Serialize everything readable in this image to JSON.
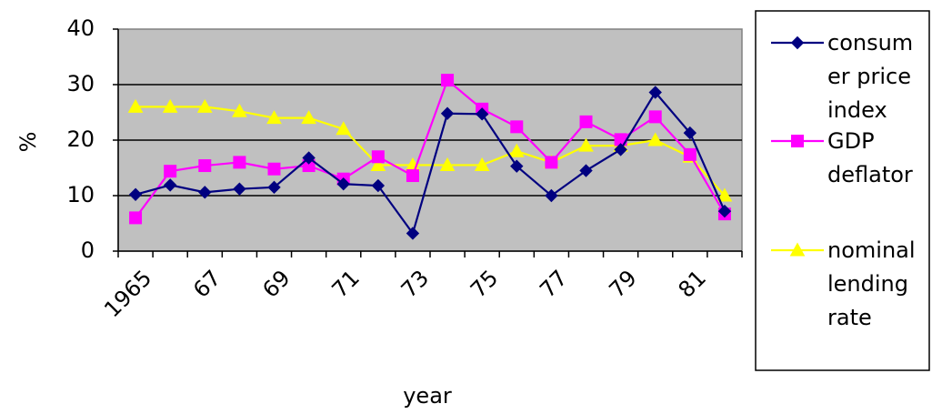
{
  "chart_data": {
    "type": "line",
    "title": "",
    "xlabel": "year",
    "ylabel": "%",
    "ylim": [
      0,
      40
    ],
    "yticks": [
      0,
      10,
      20,
      30,
      40
    ],
    "x": [
      1965,
      1966,
      1967,
      1968,
      1969,
      1970,
      1971,
      1972,
      1973,
      1974,
      1975,
      1976,
      1977,
      1978,
      1979,
      1980,
      1981,
      1982
    ],
    "xtick_labels": [
      {
        "x": 1965,
        "label": "1965"
      },
      {
        "x": 1967,
        "label": "67"
      },
      {
        "x": 1969,
        "label": "69"
      },
      {
        "x": 1971,
        "label": "71"
      },
      {
        "x": 1973,
        "label": "73"
      },
      {
        "x": 1975,
        "label": "75"
      },
      {
        "x": 1977,
        "label": "77"
      },
      {
        "x": 1979,
        "label": "79"
      },
      {
        "x": 1981,
        "label": "81"
      }
    ],
    "grid": true,
    "legend_position": "right",
    "background": "#c0c0c0",
    "series": [
      {
        "name": "consumer price index",
        "legend_lines": [
          "consum",
          "er price",
          "index"
        ],
        "color": "#000080",
        "marker": "diamond",
        "values": [
          10.2,
          11.9,
          10.6,
          11.2,
          11.5,
          16.8,
          12.1,
          11.8,
          3.2,
          24.8,
          24.7,
          15.3,
          10.0,
          14.5,
          18.3,
          28.6,
          21.3,
          7.2
        ]
      },
      {
        "name": "GDP deflator",
        "legend_lines": [
          "GDP",
          "deflator"
        ],
        "color": "#ff00ff",
        "marker": "square",
        "values": [
          6.0,
          14.4,
          15.4,
          16.0,
          14.8,
          15.4,
          13.0,
          17.0,
          13.6,
          30.8,
          25.6,
          22.4,
          16.0,
          23.3,
          20.1,
          24.2,
          17.4,
          6.7
        ]
      },
      {
        "name": "nominal lending rate",
        "legend_lines": [
          "nominal",
          "lending",
          "rate"
        ],
        "color": "#ffff00",
        "marker": "triangle",
        "values": [
          26.0,
          26.0,
          26.0,
          25.2,
          24.0,
          24.0,
          22.0,
          15.5,
          15.5,
          15.5,
          15.5,
          18.0,
          16.0,
          19.0,
          19.0,
          20.0,
          17.0,
          10.0
        ]
      }
    ]
  }
}
